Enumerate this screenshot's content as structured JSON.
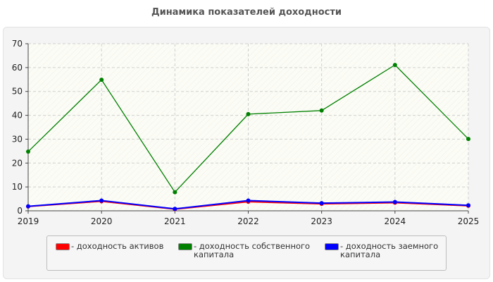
{
  "chart_data": {
    "type": "line",
    "title": "Динамика показателей доходности",
    "xlabel": "",
    "ylabel": "",
    "x": [
      "2019",
      "2020",
      "2021",
      "2022",
      "2023",
      "2024",
      "2025"
    ],
    "ylim": [
      0,
      70
    ],
    "yticks": [
      0,
      10,
      20,
      30,
      40,
      50,
      60,
      70
    ],
    "grid": true,
    "legend_position": "bottom",
    "series": [
      {
        "name": "- доходность активов",
        "color": "#ff0000",
        "values": [
          1.8,
          4.0,
          0.7,
          3.8,
          2.9,
          3.4,
          2.1
        ]
      },
      {
        "name": "- доходность собственного капитала",
        "color": "#008000",
        "values": [
          24.8,
          54.9,
          7.8,
          40.5,
          42.0,
          61.1,
          30.1
        ]
      },
      {
        "name": "- доходность заемного капитала",
        "color": "#0000ff",
        "values": [
          1.9,
          4.3,
          0.8,
          4.3,
          3.2,
          3.7,
          2.3
        ]
      }
    ]
  }
}
